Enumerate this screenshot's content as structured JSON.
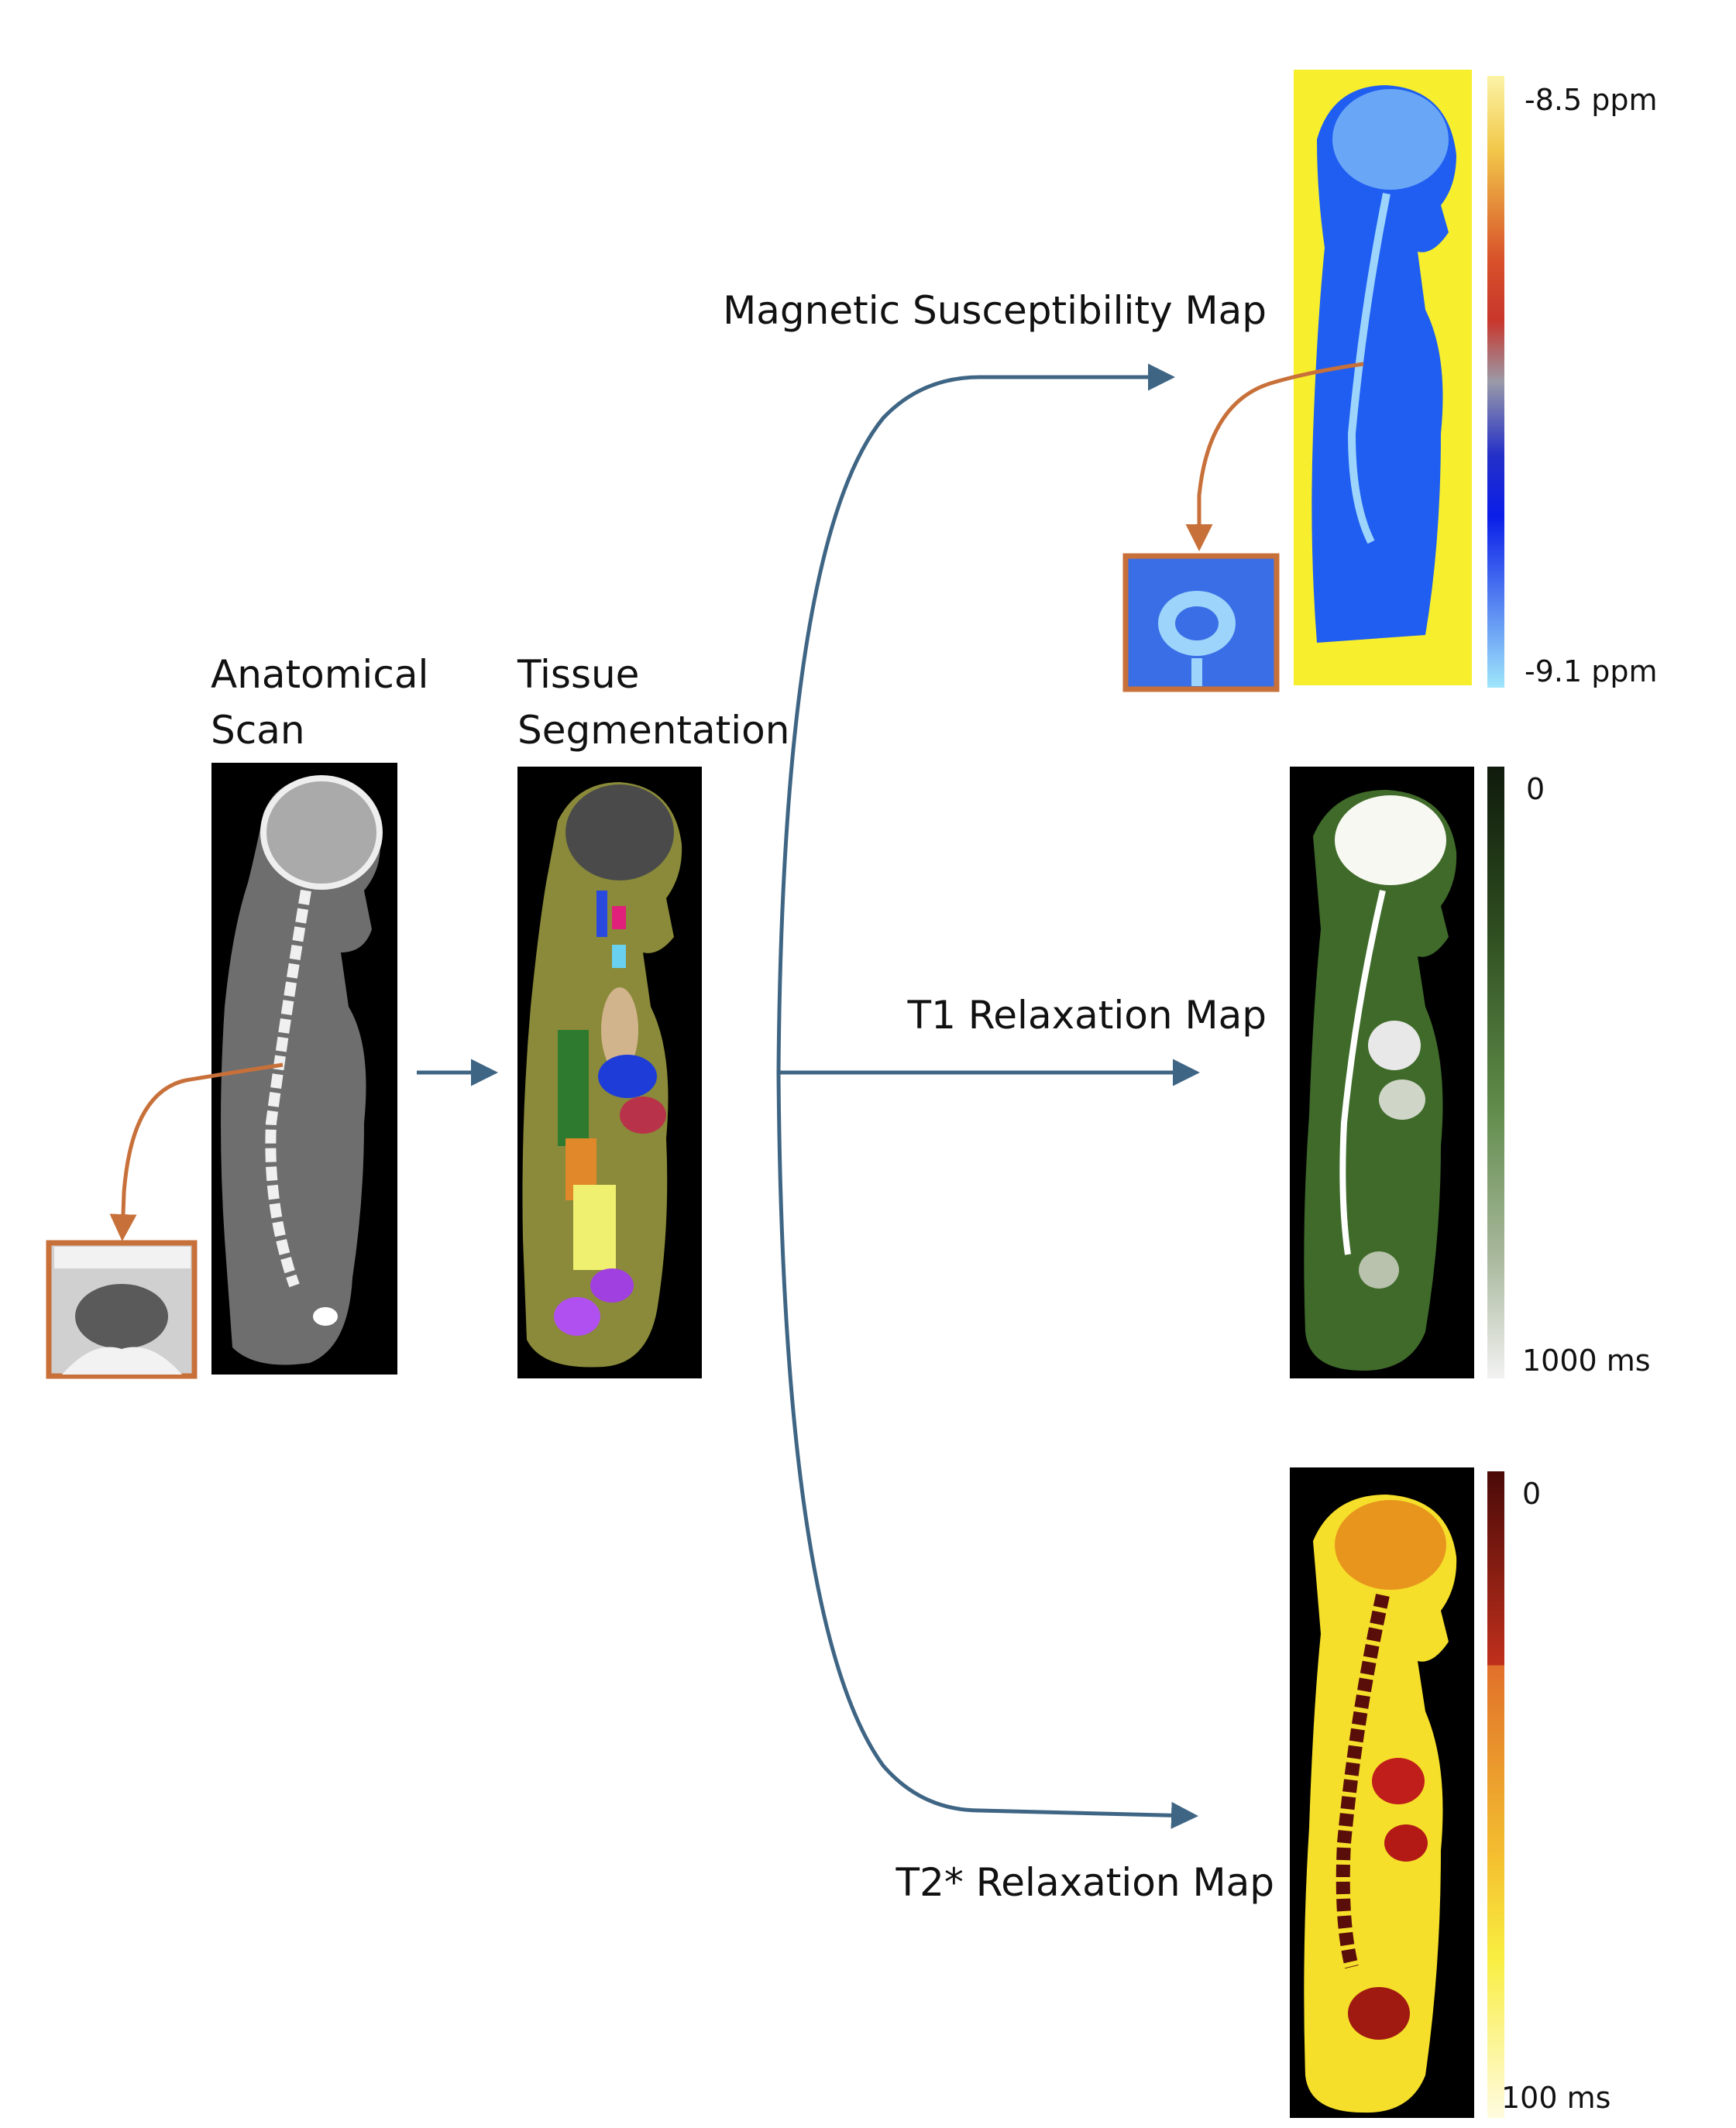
{
  "labels": {
    "anatomical_scan": [
      "Anatomical",
      "Scan"
    ],
    "tissue_segmentation": [
      "Tissue",
      "Segmentation"
    ],
    "susceptibility_map": "Magnetic Susceptibility Map",
    "t1_map": "T1 Relaxation Map",
    "t2star_map": "T2* Relaxation Map"
  },
  "colorbars": {
    "susceptibility": {
      "top": "-8.5 ppm",
      "bottom": "-9.1 ppm"
    },
    "t1": {
      "top": "0",
      "bottom": "1000 ms"
    },
    "t2star": {
      "top": "0",
      "bottom": "100 ms"
    }
  },
  "colors": {
    "arrow": "#3f6584",
    "inset_link": "#c8703a",
    "inset_border": "#c8703a",
    "susceptibility_bg": "#f7ef2d",
    "susceptibility_tissue": "#1f5ef0",
    "t1_tissue": "#3f6a2a",
    "t2star_tissue": "#f6df2a",
    "segmentation_tissue": "#8a8a3a"
  },
  "icons": {
    "anatomical": "ct-sagittal-body-image",
    "segmentation": "segmented-sagittal-body-image",
    "susceptibility": "susceptibility-map-image",
    "t1": "t1-map-image",
    "t2star": "t2star-map-image",
    "inset_ct": "vertebra-zoom-inset",
    "inset_susceptibility": "vertebra-zoom-inset"
  }
}
